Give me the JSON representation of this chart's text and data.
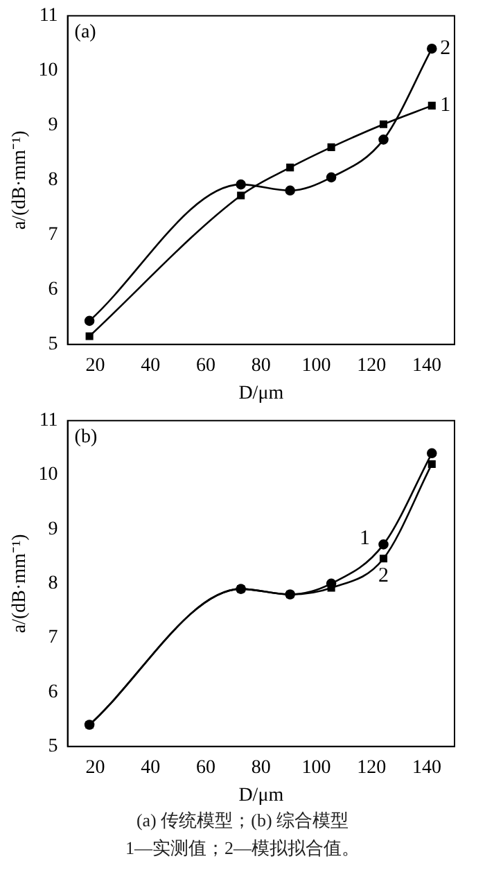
{
  "chart_data": [
    {
      "type": "line",
      "title": "(a)",
      "xlabel": "D/μm",
      "ylabel": "a/(dB·mm⁻¹)",
      "xlim": [
        10,
        150
      ],
      "xticks": [
        20,
        40,
        60,
        80,
        100,
        120,
        140
      ],
      "ylim": [
        5,
        11
      ],
      "yticks": [
        5,
        6,
        7,
        8,
        9,
        10,
        11
      ],
      "grid": false,
      "legend": false,
      "series": [
        {
          "name": "1",
          "color": "#000000",
          "marker": "square",
          "x": [
            17.9,
            72.7,
            90.5,
            105.4,
            124.3,
            141.8
          ],
          "values": [
            5.15,
            7.72,
            8.23,
            8.6,
            9.02,
            9.36
          ]
        },
        {
          "name": "2",
          "color": "#000000",
          "marker": "circle",
          "x": [
            17.9,
            72.7,
            90.5,
            105.4,
            124.3,
            141.8
          ],
          "values": [
            5.43,
            7.92,
            7.81,
            8.05,
            8.74,
            10.4
          ]
        }
      ]
    },
    {
      "type": "line",
      "title": "(b)",
      "xlabel": "D/μm",
      "ylabel": "a/(dB·mm⁻¹)",
      "xlim": [
        10,
        150
      ],
      "xticks": [
        20,
        40,
        60,
        80,
        100,
        120,
        140
      ],
      "ylim": [
        5,
        11
      ],
      "yticks": [
        5,
        6,
        7,
        8,
        9,
        10,
        11
      ],
      "grid": false,
      "legend": false,
      "annotations": [
        "(a) 传统模型；(b) 综合模型",
        "1—实测值；2—模拟拟合值。"
      ],
      "series": [
        {
          "name": "1",
          "color": "#000000",
          "marker": "circle",
          "x": [
            17.9,
            72.7,
            90.5,
            105.4,
            124.3,
            141.8
          ],
          "values": [
            5.4,
            7.9,
            7.8,
            8.0,
            8.72,
            10.4
          ]
        },
        {
          "name": "2",
          "color": "#000000",
          "marker": "square",
          "x": [
            17.9,
            72.7,
            90.5,
            105.4,
            124.3,
            141.8
          ],
          "values": [
            5.4,
            7.9,
            7.8,
            7.92,
            8.46,
            10.2
          ]
        }
      ]
    }
  ]
}
